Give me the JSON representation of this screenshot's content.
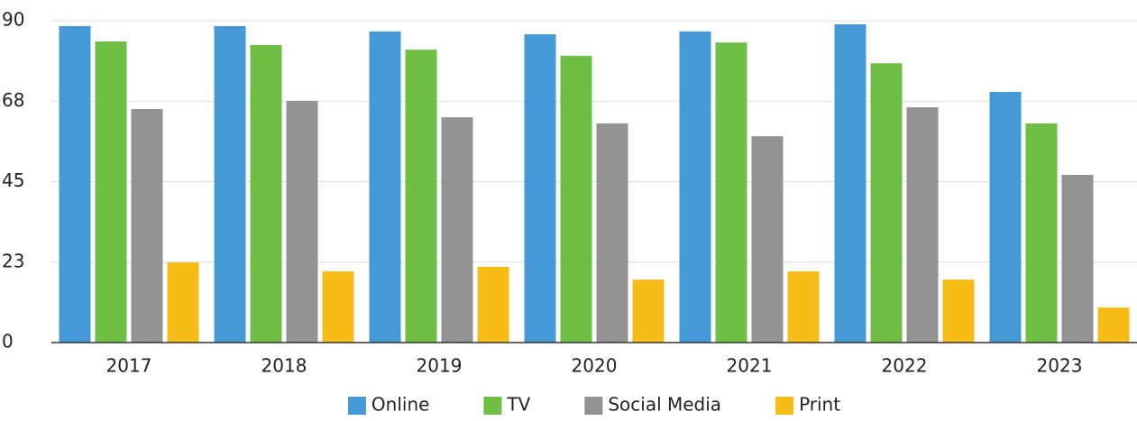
{
  "chart_data": {
    "type": "bar",
    "categories": [
      "2017",
      "2018",
      "2019",
      "2020",
      "2021",
      "2022",
      "2023"
    ],
    "series": [
      {
        "name": "Online",
        "color": "#4499d6",
        "values": [
          88.5,
          88.5,
          87,
          86.2,
          87,
          89,
          70.1
        ]
      },
      {
        "name": "TV",
        "color": "#6fbf44",
        "values": [
          84.2,
          83.2,
          81.9,
          80.2,
          83.9,
          78.1,
          61.3
        ]
      },
      {
        "name": "Social Media",
        "color": "#939393",
        "values": [
          65.3,
          67.6,
          63,
          61.3,
          57.7,
          65.8,
          46.9
        ]
      },
      {
        "name": "Print",
        "color": "#f7bd16",
        "values": [
          22.4,
          19.9,
          21.2,
          17.6,
          19.9,
          17.6,
          9.8
        ]
      }
    ],
    "ylim": [
      0,
      90
    ],
    "yticks": [
      0,
      {
        "value": 22.5,
        "label": "23"
      },
      45,
      {
        "value": 67.5,
        "label": "68"
      },
      90
    ],
    "grid": true,
    "legend": "bottom"
  }
}
